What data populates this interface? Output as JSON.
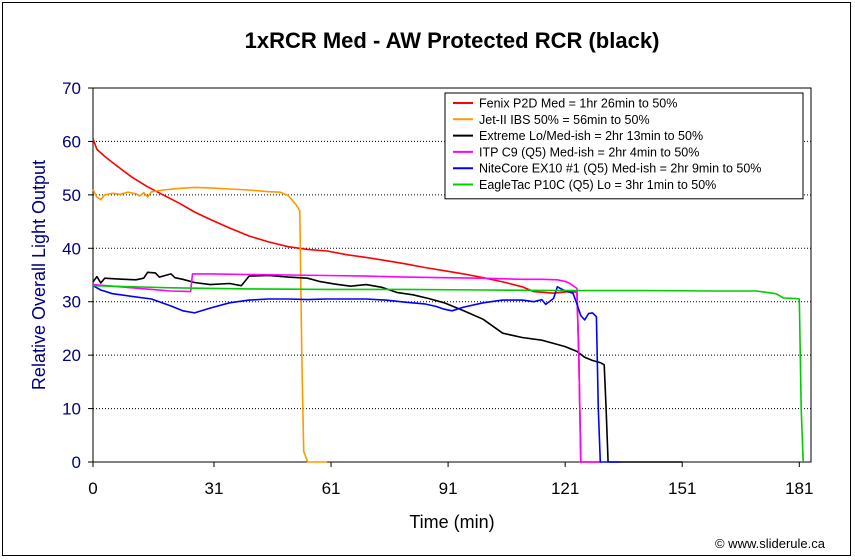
{
  "chart_data": {
    "type": "line",
    "title": "1xRCR Med - AW Protected RCR (black)",
    "xlabel": "Time (min)",
    "ylabel": "Relative Overall Light Output",
    "xlim": [
      0,
      184
    ],
    "ylim": [
      0,
      70
    ],
    "xticks": [
      "0",
      "31",
      "61",
      "91",
      "121",
      "151",
      "181"
    ],
    "xtick_values": [
      0,
      31,
      61,
      91,
      121,
      151,
      181
    ],
    "yticks": [
      "0",
      "10",
      "20",
      "30",
      "40",
      "50",
      "60",
      "70"
    ],
    "ytick_values": [
      0,
      10,
      20,
      30,
      40,
      50,
      60,
      70
    ],
    "grid": "horizontal dotted",
    "legend_position": "top-right",
    "credit": "© www.sliderule.ca",
    "series": [
      {
        "name": "Fenix P2D Med = 1hr 26min to 50%",
        "color": "#ff0000",
        "points": [
          [
            0,
            60.5
          ],
          [
            1,
            58.5
          ],
          [
            3,
            57.2
          ],
          [
            6,
            55.5
          ],
          [
            10,
            53.3
          ],
          [
            14,
            51.5
          ],
          [
            18,
            50.0
          ],
          [
            22,
            48.5
          ],
          [
            26,
            46.8
          ],
          [
            30,
            45.4
          ],
          [
            35,
            43.8
          ],
          [
            40,
            42.3
          ],
          [
            45,
            41.2
          ],
          [
            50,
            40.3
          ],
          [
            55,
            39.8
          ],
          [
            60,
            39.5
          ],
          [
            65,
            38.8
          ],
          [
            70,
            38.3
          ],
          [
            75,
            37.7
          ],
          [
            80,
            37.1
          ],
          [
            85,
            36.4
          ],
          [
            90,
            35.8
          ],
          [
            95,
            35.2
          ],
          [
            100,
            34.5
          ],
          [
            105,
            33.7
          ],
          [
            110,
            32.8
          ],
          [
            113,
            31.9
          ],
          [
            118,
            31.6
          ],
          [
            122,
            31.9
          ],
          [
            124,
            31.8
          ],
          [
            124.5,
            20.0
          ],
          [
            125,
            0
          ],
          [
            130,
            0
          ]
        ]
      },
      {
        "name": "Jet-II IBS 50% = 56min to 50%",
        "color": "#ff9900",
        "points": [
          [
            0,
            51.0
          ],
          [
            1,
            49.6
          ],
          [
            2,
            49.1
          ],
          [
            3,
            50.0
          ],
          [
            5,
            50.3
          ],
          [
            7,
            50.1
          ],
          [
            9,
            50.5
          ],
          [
            11,
            50.2
          ],
          [
            12,
            49.8
          ],
          [
            13,
            50.4
          ],
          [
            14,
            49.6
          ],
          [
            15,
            50.6
          ],
          [
            18,
            50.9
          ],
          [
            22,
            51.2
          ],
          [
            26,
            51.4
          ],
          [
            30,
            51.3
          ],
          [
            35,
            51.1
          ],
          [
            40,
            50.9
          ],
          [
            45,
            50.6
          ],
          [
            48,
            50.5
          ],
          [
            50,
            49.9
          ],
          [
            52,
            48.2
          ],
          [
            53,
            47.0
          ],
          [
            53.5,
            20.0
          ],
          [
            54,
            2.0
          ],
          [
            55,
            0
          ],
          [
            60,
            0
          ]
        ]
      },
      {
        "name": "Extreme Lo/Med-ish = 2hr 13min to 50%",
        "color": "#000000",
        "points": [
          [
            0,
            33.7
          ],
          [
            1,
            34.7
          ],
          [
            2,
            33.5
          ],
          [
            3,
            34.4
          ],
          [
            5,
            34.3
          ],
          [
            8,
            34.2
          ],
          [
            11,
            34.1
          ],
          [
            13,
            34.4
          ],
          [
            14,
            35.5
          ],
          [
            16,
            35.4
          ],
          [
            17,
            34.6
          ],
          [
            20,
            35.2
          ],
          [
            21,
            34.5
          ],
          [
            23,
            34.2
          ],
          [
            26,
            33.6
          ],
          [
            30,
            33.2
          ],
          [
            35,
            33.4
          ],
          [
            38,
            33.0
          ],
          [
            40,
            34.8
          ],
          [
            45,
            34.9
          ],
          [
            50,
            34.6
          ],
          [
            55,
            34.4
          ],
          [
            58,
            33.8
          ],
          [
            62,
            33.3
          ],
          [
            66,
            32.9
          ],
          [
            70,
            33.2
          ],
          [
            74,
            32.7
          ],
          [
            78,
            31.7
          ],
          [
            82,
            31.3
          ],
          [
            86,
            30.6
          ],
          [
            90,
            29.8
          ],
          [
            95,
            28.3
          ],
          [
            100,
            26.7
          ],
          [
            105,
            24.1
          ],
          [
            110,
            23.3
          ],
          [
            115,
            22.8
          ],
          [
            118,
            22.2
          ],
          [
            121,
            21.6
          ],
          [
            124,
            20.7
          ],
          [
            126,
            19.6
          ],
          [
            128,
            19.0
          ],
          [
            130,
            18.6
          ],
          [
            131,
            18.2
          ],
          [
            131.5,
            10.0
          ],
          [
            132,
            0
          ],
          [
            140,
            0
          ],
          [
            151,
            0
          ]
        ]
      },
      {
        "name": "ITP C9 (Q5) Med-ish = 2hr 4min to 50%",
        "color": "#ff00ff",
        "points": [
          [
            0,
            33.2
          ],
          [
            5,
            32.9
          ],
          [
            10,
            32.6
          ],
          [
            15,
            32.3
          ],
          [
            20,
            32.0
          ],
          [
            25,
            31.9
          ],
          [
            25.5,
            35.2
          ],
          [
            30,
            35.2
          ],
          [
            40,
            35.1
          ],
          [
            50,
            35.0
          ],
          [
            60,
            34.9
          ],
          [
            70,
            34.8
          ],
          [
            80,
            34.6
          ],
          [
            90,
            34.5
          ],
          [
            100,
            34.4
          ],
          [
            110,
            34.2
          ],
          [
            115,
            34.2
          ],
          [
            119,
            34.1
          ],
          [
            121,
            33.8
          ],
          [
            122,
            33.5
          ],
          [
            123,
            33.0
          ],
          [
            124,
            32.5
          ],
          [
            124.5,
            20.0
          ],
          [
            125,
            0
          ],
          [
            130,
            0
          ]
        ]
      },
      {
        "name": "NiteCore EX10 #1 (Q5) Med-ish = 2hr 9min to 50%",
        "color": "#0000ff",
        "points": [
          [
            0,
            33.0
          ],
          [
            2,
            32.2
          ],
          [
            5,
            31.5
          ],
          [
            10,
            31.0
          ],
          [
            15,
            30.5
          ],
          [
            20,
            29.2
          ],
          [
            23,
            28.3
          ],
          [
            26,
            27.9
          ],
          [
            30,
            28.8
          ],
          [
            35,
            29.8
          ],
          [
            40,
            30.3
          ],
          [
            45,
            30.5
          ],
          [
            50,
            30.5
          ],
          [
            55,
            30.4
          ],
          [
            60,
            30.5
          ],
          [
            65,
            30.5
          ],
          [
            70,
            30.5
          ],
          [
            75,
            30.3
          ],
          [
            80,
            29.9
          ],
          [
            85,
            29.6
          ],
          [
            88,
            29.1
          ],
          [
            90,
            28.6
          ],
          [
            92,
            28.3
          ],
          [
            95,
            29.0
          ],
          [
            100,
            29.8
          ],
          [
            105,
            30.3
          ],
          [
            110,
            30.3
          ],
          [
            113,
            30.0
          ],
          [
            115,
            30.4
          ],
          [
            116,
            29.5
          ],
          [
            118,
            30.6
          ],
          [
            119,
            32.8
          ],
          [
            120,
            32.4
          ],
          [
            121,
            32.0
          ],
          [
            123,
            31.6
          ],
          [
            124,
            29.6
          ],
          [
            125,
            27.4
          ],
          [
            126,
            26.6
          ],
          [
            127,
            27.8
          ],
          [
            128,
            27.9
          ],
          [
            129,
            27.2
          ],
          [
            129.5,
            10.0
          ],
          [
            130,
            0
          ],
          [
            135,
            0
          ]
        ]
      },
      {
        "name": "EagleTac P10C (Q5) Lo = 3hr 1min to 50%",
        "color": "#00cc00",
        "points": [
          [
            0,
            33.0
          ],
          [
            20,
            32.6
          ],
          [
            40,
            32.4
          ],
          [
            60,
            32.3
          ],
          [
            80,
            32.3
          ],
          [
            100,
            32.2
          ],
          [
            120,
            32.1
          ],
          [
            140,
            32.1
          ],
          [
            160,
            32.0
          ],
          [
            170,
            32.0
          ],
          [
            175,
            31.5
          ],
          [
            177,
            30.7
          ],
          [
            180,
            30.6
          ],
          [
            181,
            30.5
          ],
          [
            181.5,
            10.0
          ],
          [
            182,
            0
          ]
        ]
      }
    ]
  }
}
